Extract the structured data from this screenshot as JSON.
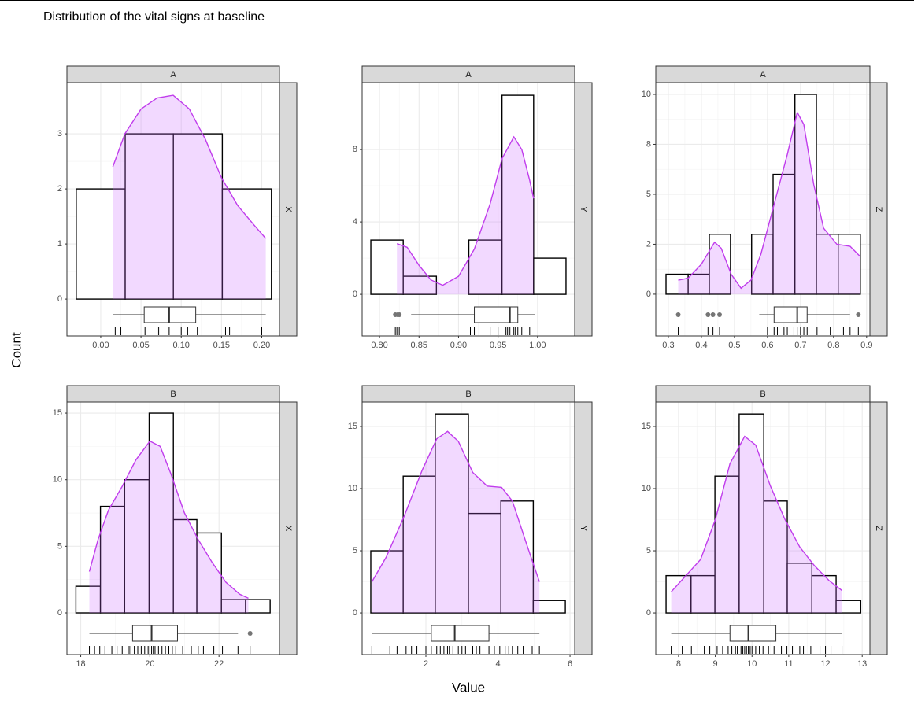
{
  "title": "Distribution of the vital signs at baseline",
  "x_label": "Value",
  "y_label": "Count",
  "chart_data": [
    {
      "type": "histogram",
      "facet": "A",
      "strip": "X",
      "bins": [
        -0.0304,
        0.0304,
        0.0902,
        0.151,
        0.212
      ],
      "counts": [
        2,
        3,
        3,
        2
      ],
      "xlim": [
        -0.042,
        0.222
      ],
      "ylim": [
        -0.67,
        3.93
      ],
      "xticks": [
        {
          "value": 0,
          "label": "0.00"
        },
        {
          "value": 0.05,
          "label": "0.05"
        },
        {
          "value": 0.1,
          "label": "0.10"
        },
        {
          "value": 0.15,
          "label": "0.15"
        },
        {
          "value": 0.2,
          "label": "0.20"
        }
      ],
      "yticks": [
        0,
        1,
        2,
        3
      ],
      "density": {
        "x": [
          0.015,
          0.03,
          0.05,
          0.07,
          0.09,
          0.11,
          0.13,
          0.15,
          0.17,
          0.19,
          0.205
        ],
        "y": [
          2.4,
          3.0,
          3.45,
          3.65,
          3.7,
          3.45,
          2.9,
          2.2,
          1.7,
          1.35,
          1.1
        ]
      },
      "box": {
        "min": 0.015,
        "q1": 0.054,
        "median": 0.085,
        "q3": 0.118,
        "max": 0.205,
        "outliers": []
      },
      "rug": [
        0.018,
        0.025,
        0.055,
        0.07,
        0.072,
        0.085,
        0.1,
        0.108,
        0.12,
        0.155,
        0.16,
        0.2
      ],
      "color": "#000000",
      "fill": "#ffffff",
      "density_color": "#c03cec",
      "density_fill": "rgba(204,102,255,0.25)",
      "grid": true
    },
    {
      "type": "histogram",
      "facet": "A",
      "strip": "Y",
      "bins": [
        0.789,
        0.83,
        0.872,
        0.913,
        0.955,
        0.995,
        1.036
      ],
      "counts": [
        3,
        1,
        0,
        3,
        11,
        2
      ],
      "xlim": [
        0.778,
        1.047
      ],
      "ylim": [
        -2.3,
        11.7
      ],
      "xticks": [
        {
          "value": 0.8,
          "label": "0.80"
        },
        0.85,
        {
          "value": 0.9,
          "label": "0.90"
        },
        0.95,
        {
          "value": 1,
          "label": "1.00"
        }
      ],
      "yticks": [
        0,
        4,
        8
      ],
      "density": {
        "x": [
          0.822,
          0.835,
          0.85,
          0.865,
          0.88,
          0.9,
          0.92,
          0.94,
          0.955,
          0.97,
          0.98,
          0.99,
          0.995
        ],
        "y": [
          2.8,
          2.6,
          1.6,
          0.8,
          0.5,
          1.0,
          2.5,
          5,
          7.5,
          8.7,
          8.0,
          6.3,
          5.3
        ]
      },
      "box": {
        "min": 0.84,
        "q1": 0.92,
        "median": 0.965,
        "q3": 0.975,
        "max": 0.997,
        "outliers": [
          0.82,
          0.823,
          0.825
        ]
      },
      "rug": [
        0.82,
        0.822,
        0.825,
        0.915,
        0.92,
        0.94,
        0.95,
        0.96,
        0.962,
        0.965,
        0.97,
        0.972,
        0.975,
        0.98,
        0.99
      ],
      "color": "#000000",
      "fill": "#ffffff",
      "density_color": "#c03cec",
      "density_fill": "rgba(204,102,255,0.25)",
      "grid": true
    },
    {
      "type": "histogram",
      "facet": "A",
      "strip": "Z",
      "bins": [
        0.293,
        0.36,
        0.424,
        0.488,
        0.552,
        0.617,
        0.683,
        0.748,
        0.814,
        0.881
      ],
      "counts": [
        1,
        1,
        3,
        0,
        3,
        6,
        10,
        3,
        3
      ],
      "xlim": [
        0.262,
        0.91
      ],
      "ylim": [
        -2.09,
        10.59
      ],
      "xticks": [
        0.3,
        0.4,
        0.5,
        0.6,
        0.7,
        0.8,
        0.9
      ],
      "yticks": [
        0,
        {
          "value": 2.5,
          "label": "2"
        },
        5,
        {
          "value": 7.5,
          "label": "8"
        },
        10
      ],
      "density": {
        "x": [
          0.33,
          0.36,
          0.4,
          0.44,
          0.46,
          0.49,
          0.52,
          0.55,
          0.58,
          0.62,
          0.66,
          0.69,
          0.71,
          0.74,
          0.77,
          0.81,
          0.85,
          0.88
        ],
        "y": [
          0.7,
          0.8,
          1.5,
          2.6,
          2.3,
          1.0,
          0.3,
          0.7,
          2.0,
          4.5,
          7.0,
          9.1,
          8.5,
          5.5,
          3.3,
          2.5,
          2.4,
          1.9
        ]
      },
      "box": {
        "min": 0.575,
        "q1": 0.62,
        "median": 0.69,
        "q3": 0.72,
        "max": 0.85,
        "outliers": [
          0.33,
          0.42,
          0.435,
          0.455,
          0.875
        ]
      },
      "rug": [
        0.33,
        0.42,
        0.435,
        0.455,
        0.6,
        0.62,
        0.63,
        0.65,
        0.66,
        0.68,
        0.69,
        0.7,
        0.71,
        0.72,
        0.75,
        0.79,
        0.83,
        0.85,
        0.875
      ],
      "color": "#000000",
      "fill": "#ffffff",
      "density_color": "#c03cec",
      "density_fill": "rgba(204,102,255,0.25)",
      "grid": true
    },
    {
      "type": "histogram",
      "facet": "B",
      "strip": "X",
      "bins": [
        17.86,
        18.57,
        19.27,
        19.98,
        20.68,
        21.36,
        22.07,
        22.77,
        23.48
      ],
      "counts": [
        2,
        8,
        10,
        15,
        7,
        6,
        1,
        1
      ],
      "xlim": [
        17.6,
        23.75
      ],
      "ylim": [
        -3.13,
        15.83
      ],
      "xticks": [
        18,
        20,
        22
      ],
      "yticks": [
        0,
        5,
        10,
        15
      ],
      "density": {
        "x": [
          18.25,
          18.5,
          18.8,
          19.2,
          19.6,
          20.0,
          20.3,
          20.6,
          21.0,
          21.4,
          21.8,
          22.2,
          22.6,
          22.85
        ],
        "y": [
          3.1,
          5.5,
          7.7,
          9.5,
          11.5,
          12.9,
          12.5,
          10.5,
          7.5,
          5.5,
          3.8,
          2.3,
          1.4,
          1.1
        ]
      },
      "box": {
        "min": 18.25,
        "q1": 19.5,
        "median": 20.05,
        "q3": 20.8,
        "max": 22.55,
        "outliers": [
          22.9
        ]
      },
      "rug": [
        18.25,
        18.4,
        18.55,
        18.7,
        18.9,
        19.05,
        19.2,
        19.4,
        19.45,
        19.55,
        19.65,
        19.75,
        19.85,
        19.95,
        20.0,
        20.05,
        20.1,
        20.15,
        20.25,
        20.35,
        20.45,
        20.55,
        20.65,
        20.75,
        20.95,
        21.2,
        21.4,
        21.55,
        21.85,
        22.1,
        22.55,
        22.9
      ],
      "color": "#000000",
      "fill": "#ffffff",
      "density_color": "#c03cec",
      "density_fill": "rgba(204,102,255,0.25)",
      "grid": true
    },
    {
      "type": "histogram",
      "facet": "B",
      "strip": "Y",
      "bins": [
        0.47,
        1.37,
        2.26,
        3.18,
        4.08,
        4.98,
        5.87
      ],
      "counts": [
        5,
        11,
        16,
        8,
        9,
        1
      ],
      "xlim": [
        0.23,
        6.13
      ],
      "ylim": [
        -3.35,
        16.96
      ],
      "xticks": [
        2,
        4,
        6
      ],
      "yticks": [
        0,
        5,
        10,
        15
      ],
      "density": {
        "x": [
          0.5,
          0.9,
          1.4,
          1.9,
          2.3,
          2.6,
          2.9,
          3.3,
          3.7,
          4.1,
          4.4,
          4.8,
          5.15
        ],
        "y": [
          2.5,
          4.5,
          7.8,
          11.5,
          14.0,
          14.6,
          13.8,
          11.3,
          10.2,
          10.1,
          9.0,
          5.5,
          2.5
        ]
      },
      "box": {
        "min": 0.5,
        "q1": 2.15,
        "median": 2.8,
        "q3": 3.75,
        "max": 5.15,
        "outliers": []
      },
      "rug": [
        0.5,
        1.0,
        1.2,
        1.45,
        1.6,
        1.75,
        2.0,
        2.15,
        2.3,
        2.4,
        2.5,
        2.6,
        2.65,
        2.75,
        2.9,
        3.0,
        3.1,
        3.3,
        3.4,
        3.5,
        3.75,
        3.9,
        4.05,
        4.2,
        4.3,
        4.4,
        4.55,
        4.7,
        4.95,
        5.15
      ],
      "color": "#000000",
      "fill": "#ffffff",
      "density_color": "#c03cec",
      "density_fill": "rgba(204,102,255,0.25)",
      "grid": true
    },
    {
      "type": "histogram",
      "facet": "B",
      "strip": "Z",
      "bins": [
        7.66,
        8.34,
        8.99,
        9.65,
        10.32,
        10.96,
        11.63,
        12.29,
        12.96
      ],
      "counts": [
        3,
        3,
        11,
        16,
        9,
        4,
        3,
        1
      ],
      "xlim": [
        7.38,
        13.21
      ],
      "ylim": [
        -3.35,
        16.96
      ],
      "xticks": [
        8,
        9,
        10,
        11,
        12,
        13
      ],
      "yticks": [
        0,
        5,
        10,
        15
      ],
      "density": {
        "x": [
          7.8,
          8.2,
          8.6,
          9.0,
          9.4,
          9.8,
          10.1,
          10.5,
          10.9,
          11.3,
          11.7,
          12.1,
          12.45
        ],
        "y": [
          1.7,
          3.0,
          4.3,
          7.5,
          12.0,
          14.2,
          13.5,
          10.2,
          7.5,
          5.3,
          3.8,
          2.6,
          1.8
        ]
      },
      "box": {
        "min": 7.8,
        "q1": 9.4,
        "median": 9.9,
        "q3": 10.65,
        "max": 12.45,
        "outliers": []
      },
      "rug": [
        7.8,
        8.1,
        8.35,
        8.7,
        8.85,
        9.05,
        9.2,
        9.35,
        9.45,
        9.55,
        9.6,
        9.7,
        9.75,
        9.8,
        9.85,
        9.9,
        9.95,
        10.0,
        10.1,
        10.2,
        10.3,
        10.45,
        10.6,
        10.8,
        10.95,
        11.1,
        11.3,
        11.4,
        11.6,
        11.85,
        12.0,
        12.15,
        12.45
      ],
      "color": "#000000",
      "fill": "#ffffff",
      "density_color": "#c03cec",
      "density_fill": "rgba(204,102,255,0.25)",
      "grid": true
    }
  ]
}
